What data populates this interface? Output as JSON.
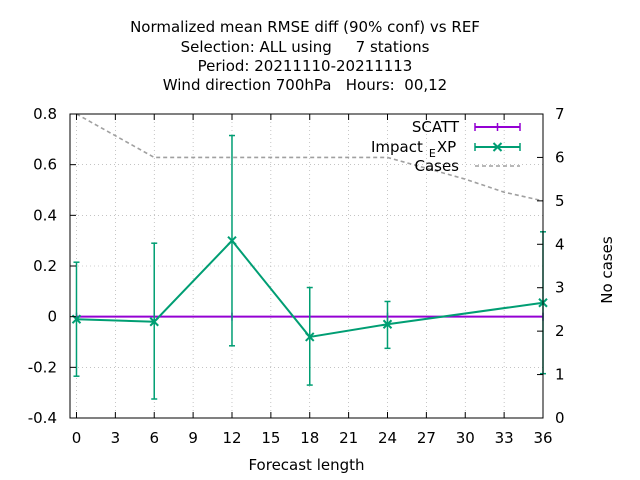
{
  "chart_data": {
    "type": "line",
    "title_lines": [
      "Normalized mean RMSE diff (90% conf) vs REF",
      "Selection: ALL using     7 stations",
      "Period: 20211110-20211113",
      "Wind direction 700hPa   Hours:  00,12"
    ],
    "xlabel": "Forecast length",
    "ylabel": "",
    "y2label": "No cases",
    "xlim": [
      -0.5,
      36
    ],
    "ylim": [
      -0.4,
      0.8
    ],
    "y2lim": [
      0,
      7
    ],
    "xticks": [
      "0",
      "3",
      "6",
      "9",
      "12",
      "15",
      "18",
      "21",
      "24",
      "27",
      "30",
      "33",
      "36"
    ],
    "yticks": [
      "-0.4",
      "-0.2",
      "0",
      "0.2",
      "0.4",
      "0.6",
      "0.8"
    ],
    "y2ticks": [
      "0",
      "1",
      "2",
      "3",
      "4",
      "5",
      "6",
      "7"
    ],
    "grid": true,
    "legend_position": "top-right",
    "series": [
      {
        "name": "SCATT",
        "color": "#9400d3",
        "x": [
          0,
          6,
          12,
          18,
          24,
          36
        ],
        "y": [
          0,
          0,
          0,
          0,
          0,
          0
        ],
        "err_low": [
          0,
          0,
          0,
          0,
          0,
          0
        ],
        "err_high": [
          0,
          0,
          0,
          0,
          0,
          0
        ]
      },
      {
        "name": "Impact_EXP",
        "color": "#009e73",
        "x": [
          0,
          6,
          12,
          18,
          24,
          36
        ],
        "y": [
          -0.01,
          -0.02,
          0.3,
          -0.08,
          -0.03,
          0.055
        ],
        "err_low": [
          -0.235,
          -0.325,
          -0.115,
          -0.27,
          -0.125,
          -0.225
        ],
        "err_high": [
          0.215,
          0.29,
          0.715,
          0.115,
          0.06,
          0.335
        ]
      },
      {
        "name": "Cases",
        "color": "#a0a0a0",
        "axis": "y2",
        "x": [
          0,
          6,
          12,
          18,
          24,
          30,
          33,
          36
        ],
        "y": [
          7,
          6,
          6,
          6,
          6,
          5.5,
          5.2,
          5
        ]
      }
    ]
  }
}
